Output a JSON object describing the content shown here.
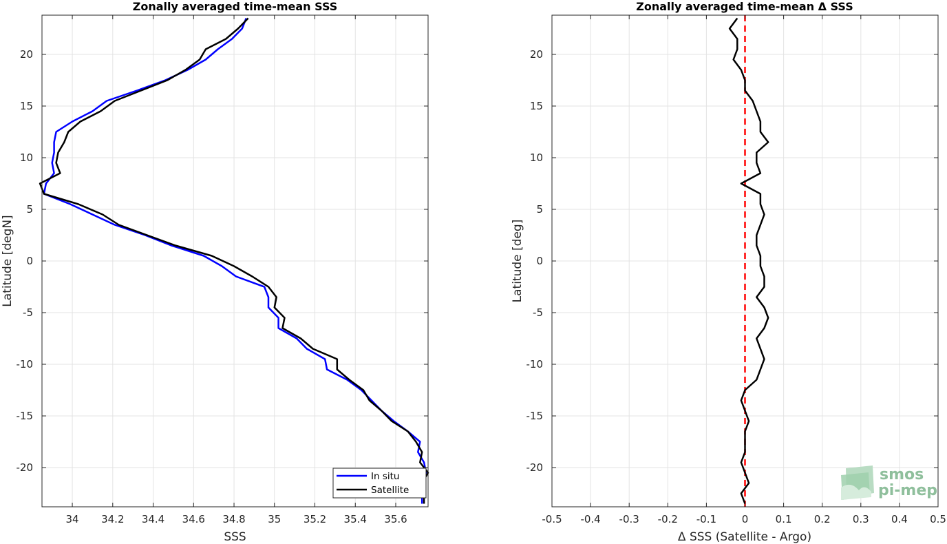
{
  "chart_data": [
    {
      "type": "line",
      "title": "Zonally averaged time-mean SSS",
      "xlabel": "SSS",
      "ylabel": "Latitude [degN]",
      "xlim": [
        33.85,
        35.76
      ],
      "ylim": [
        -23.8,
        23.8
      ],
      "xticks": [
        34,
        34.2,
        34.4,
        34.6,
        34.8,
        35,
        35.2,
        35.4,
        35.6
      ],
      "xtick_labels": [
        "34",
        "34.2",
        "34.4",
        "34.6",
        "34.8",
        "35",
        "35.2",
        "35.4",
        "35.6"
      ],
      "yticks": [
        -20,
        -15,
        -10,
        -5,
        0,
        5,
        10,
        15,
        20
      ],
      "ytick_labels": [
        "-20",
        "-15",
        "-10",
        "-5",
        "0",
        "5",
        "10",
        "15",
        "20"
      ],
      "grid": true,
      "legend_position": "bottom-right",
      "series": [
        {
          "name": "In situ",
          "color": "#0000ff",
          "points": [
            [
              34.86,
              23.5
            ],
            [
              34.84,
              22.5
            ],
            [
              34.79,
              21.5
            ],
            [
              34.72,
              20.5
            ],
            [
              34.66,
              19.5
            ],
            [
              34.57,
              18.5
            ],
            [
              34.46,
              17.5
            ],
            [
              34.32,
              16.5
            ],
            [
              34.17,
              15.5
            ],
            [
              34.1,
              14.5
            ],
            [
              34.0,
              13.5
            ],
            [
              33.92,
              12.5
            ],
            [
              33.91,
              11.5
            ],
            [
              33.91,
              10.5
            ],
            [
              33.9,
              9.5
            ],
            [
              33.91,
              8.5
            ],
            [
              33.87,
              7.5
            ],
            [
              33.86,
              6.5
            ],
            [
              33.99,
              5.5
            ],
            [
              34.1,
              4.5
            ],
            [
              34.21,
              3.5
            ],
            [
              34.36,
              2.5
            ],
            [
              34.49,
              1.5
            ],
            [
              34.65,
              0.5
            ],
            [
              34.74,
              -0.5
            ],
            [
              34.81,
              -1.5
            ],
            [
              34.95,
              -2.5
            ],
            [
              34.97,
              -3.5
            ],
            [
              34.97,
              -4.5
            ],
            [
              35.02,
              -5.5
            ],
            [
              35.02,
              -6.5
            ],
            [
              35.11,
              -7.5
            ],
            [
              35.16,
              -8.5
            ],
            [
              35.25,
              -9.5
            ],
            [
              35.26,
              -10.5
            ],
            [
              35.36,
              -11.5
            ],
            [
              35.43,
              -12.5
            ],
            [
              35.48,
              -13.5
            ],
            [
              35.53,
              -14.5
            ],
            [
              35.59,
              -15.5
            ],
            [
              35.66,
              -16.5
            ],
            [
              35.72,
              -17.5
            ],
            [
              35.71,
              -18.5
            ],
            [
              35.74,
              -19.5
            ],
            [
              35.75,
              -20.5
            ],
            [
              35.72,
              -21.5
            ],
            [
              35.73,
              -22.5
            ],
            [
              35.73,
              -23.5
            ]
          ]
        },
        {
          "name": "Satellite",
          "color": "#000000",
          "points": [
            [
              34.87,
              23.5
            ],
            [
              34.82,
              22.5
            ],
            [
              34.76,
              21.5
            ],
            [
              34.66,
              20.5
            ],
            [
              34.63,
              19.5
            ],
            [
              34.56,
              18.5
            ],
            [
              34.47,
              17.5
            ],
            [
              34.34,
              16.5
            ],
            [
              34.21,
              15.5
            ],
            [
              34.14,
              14.5
            ],
            [
              34.04,
              13.5
            ],
            [
              33.98,
              12.5
            ],
            [
              33.96,
              11.5
            ],
            [
              33.93,
              10.5
            ],
            [
              33.92,
              9.5
            ],
            [
              33.94,
              8.5
            ],
            [
              33.84,
              7.5
            ],
            [
              33.86,
              6.5
            ],
            [
              34.03,
              5.5
            ],
            [
              34.15,
              4.5
            ],
            [
              34.23,
              3.5
            ],
            [
              34.37,
              2.5
            ],
            [
              34.51,
              1.5
            ],
            [
              34.69,
              0.5
            ],
            [
              34.8,
              -0.5
            ],
            [
              34.89,
              -1.5
            ],
            [
              34.97,
              -2.5
            ],
            [
              35.01,
              -3.5
            ],
            [
              35.0,
              -4.5
            ],
            [
              35.05,
              -5.5
            ],
            [
              35.04,
              -6.5
            ],
            [
              35.13,
              -7.5
            ],
            [
              35.19,
              -8.5
            ],
            [
              35.31,
              -9.5
            ],
            [
              35.31,
              -10.5
            ],
            [
              35.37,
              -11.5
            ],
            [
              35.44,
              -12.5
            ],
            [
              35.47,
              -13.5
            ],
            [
              35.53,
              -14.5
            ],
            [
              35.58,
              -15.5
            ],
            [
              35.66,
              -16.5
            ],
            [
              35.7,
              -17.5
            ],
            [
              35.73,
              -18.5
            ],
            [
              35.72,
              -19.5
            ],
            [
              35.76,
              -20.5
            ],
            [
              35.73,
              -21.5
            ],
            [
              35.74,
              -22.5
            ],
            [
              35.74,
              -23.5
            ]
          ]
        }
      ]
    },
    {
      "type": "line",
      "title": "Zonally averaged time-mean Δ SSS",
      "xlabel": "Δ SSS (Satellite - Argo)",
      "ylabel": "Latitude [deg]",
      "xlim": [
        -0.5,
        0.5
      ],
      "ylim": [
        -23.8,
        23.8
      ],
      "xticks": [
        -0.5,
        -0.4,
        -0.3,
        -0.2,
        -0.1,
        0,
        0.1,
        0.2,
        0.3,
        0.4,
        0.5
      ],
      "xtick_labels": [
        "-0.5",
        "-0.4",
        "-0.3",
        "-0.2",
        "-0.1",
        "0",
        "0.1",
        "0.2",
        "0.3",
        "0.4",
        "0.5"
      ],
      "yticks": [
        -20,
        -15,
        -10,
        -5,
        0,
        5,
        10,
        15,
        20
      ],
      "ytick_labels": [
        "-20",
        "-15",
        "-10",
        "-5",
        "0",
        "5",
        "10",
        "15",
        "20"
      ],
      "grid": true,
      "reference_line": {
        "x": 0,
        "color": "#ff0000",
        "style": "dashed"
      },
      "series": [
        {
          "color": "#000000",
          "points": [
            [
              -0.02,
              23.5
            ],
            [
              -0.04,
              22.5
            ],
            [
              -0.02,
              21.5
            ],
            [
              -0.02,
              20.5
            ],
            [
              -0.03,
              19.5
            ],
            [
              -0.01,
              18.5
            ],
            [
              0.0,
              17.5
            ],
            [
              0.0,
              16.5
            ],
            [
              0.02,
              15.5
            ],
            [
              0.03,
              14.5
            ],
            [
              0.04,
              13.5
            ],
            [
              0.04,
              12.5
            ],
            [
              0.06,
              11.5
            ],
            [
              0.03,
              10.5
            ],
            [
              0.03,
              9.5
            ],
            [
              0.04,
              8.5
            ],
            [
              -0.01,
              7.5
            ],
            [
              0.04,
              6.5
            ],
            [
              0.04,
              5.5
            ],
            [
              0.05,
              4.5
            ],
            [
              0.04,
              3.5
            ],
            [
              0.03,
              2.5
            ],
            [
              0.03,
              1.5
            ],
            [
              0.04,
              0.5
            ],
            [
              0.04,
              -0.5
            ],
            [
              0.05,
              -1.5
            ],
            [
              0.05,
              -2.5
            ],
            [
              0.03,
              -3.5
            ],
            [
              0.05,
              -4.5
            ],
            [
              0.06,
              -5.5
            ],
            [
              0.05,
              -6.5
            ],
            [
              0.03,
              -7.5
            ],
            [
              0.04,
              -8.5
            ],
            [
              0.05,
              -9.5
            ],
            [
              0.04,
              -10.5
            ],
            [
              0.03,
              -11.5
            ],
            [
              0.0,
              -12.5
            ],
            [
              -0.01,
              -13.5
            ],
            [
              0.0,
              -14.5
            ],
            [
              0.01,
              -15.5
            ],
            [
              0.0,
              -16.5
            ],
            [
              0.0,
              -17.5
            ],
            [
              0.0,
              -18.5
            ],
            [
              -0.01,
              -19.5
            ],
            [
              0.0,
              -20.5
            ],
            [
              0.01,
              -21.5
            ],
            [
              -0.01,
              -22.5
            ],
            [
              0.0,
              -23.5
            ]
          ]
        }
      ]
    }
  ],
  "logo": {
    "line1": "smos",
    "line2": "pi-mep"
  }
}
